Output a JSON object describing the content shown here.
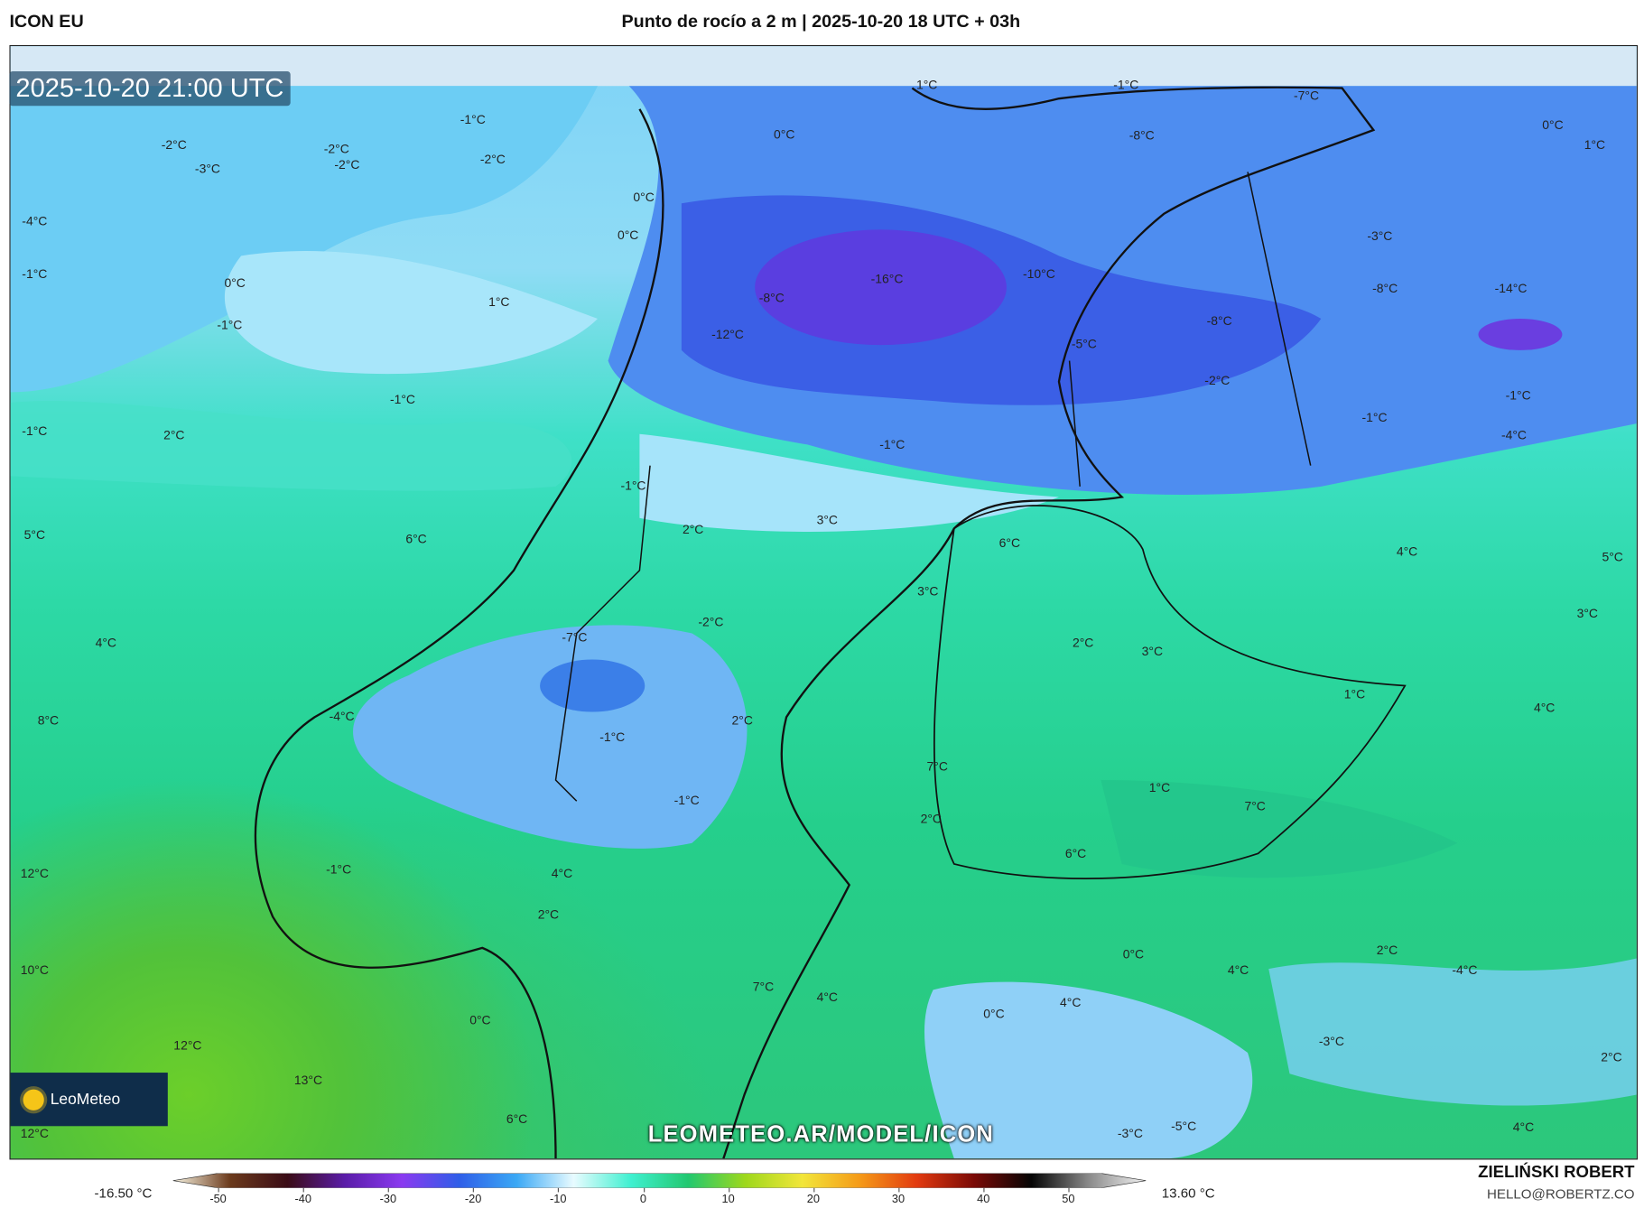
{
  "header": {
    "model": "ICON EU",
    "title": "Punto de rocío a 2 m | 2025-10-20 18 UTC + 03h"
  },
  "map": {
    "valid_time": "2025-10-20 21:00 UTC",
    "watermark": "LEOMETEO.AR/MODEL/ICON",
    "logo": "LeoMeteo",
    "labels": [
      "1°C",
      "-1°C",
      "-7°C",
      "-8°C",
      "0°C",
      "1°C",
      "-1°C",
      "-2°C",
      "-2°C",
      "-2°C",
      "-3°C",
      "-2°C",
      "0°C",
      "0°C",
      "0°C",
      "-4°C",
      "-1°C",
      "0°C",
      "1°C",
      "-1°C",
      "-16°C",
      "-10°C",
      "-8°C",
      "-12°C",
      "-3°C",
      "-8°C",
      "-14°C",
      "-8°C",
      "-5°C",
      "-2°C",
      "-1°C",
      "-1°C",
      "-1°C",
      "-4°C",
      "-1°C",
      "2°C",
      "-1°C",
      "-1°C",
      "2°C",
      "3°C",
      "6°C",
      "5°C",
      "6°C",
      "4°C",
      "5°C",
      "3°C",
      "3°C",
      "-2°C",
      "-7°C",
      "4°C",
      "2°C",
      "3°C",
      "1°C",
      "4°C",
      "8°C",
      "-4°C",
      "2°C",
      "-1°C",
      "7°C",
      "1°C",
      "-1°C",
      "7°C",
      "2°C",
      "6°C",
      "12°C",
      "-1°C",
      "4°C",
      "2°C",
      "2°C",
      "0°C",
      "4°C",
      "-4°C",
      "10°C",
      "7°C",
      "4°C",
      "0°C",
      "4°C",
      "0°C",
      "12°C",
      "-3°C",
      "2°C",
      "13°C",
      "6°C",
      "-5°C",
      "-3°C",
      "4°C",
      "12°C"
    ]
  },
  "colorbar": {
    "min_label": "-16.50 °C",
    "max_label": "13.60 °C",
    "ticks": [
      "-50",
      "-40",
      "-30",
      "-20",
      "-10",
      "0",
      "10",
      "20",
      "30",
      "40",
      "50"
    ],
    "colors": [
      "#fbf7e4",
      "#6b3a1c",
      "#3a0c16",
      "#5a1ca8",
      "#8a3af0",
      "#2f5ee8",
      "#3aa8f5",
      "#e8fbff",
      "#3ff0d0",
      "#22c870",
      "#9ed81c",
      "#f2e63a",
      "#f59a18",
      "#e23a10",
      "#7a0a06",
      "#050505",
      "#8a8a8a",
      "#f4f4f4"
    ]
  },
  "credits": {
    "author": "ZIELIŃSKI ROBERT",
    "email": "HELLO@ROBERTZ.CO"
  }
}
